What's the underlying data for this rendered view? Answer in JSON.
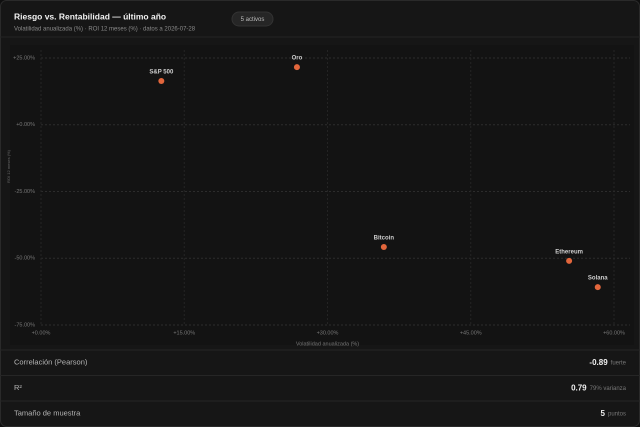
{
  "header": {
    "title": "Riesgo vs. Rentabilidad — último año",
    "subtitle": "Volatilidad anualizada (%) · ROI 12 meses (%) · datos a 2026-07-28",
    "badge": "5 activos"
  },
  "chart_data": {
    "type": "scatter",
    "x_label": "Volatilidad anualizada (%)",
    "y_label": "ROI 12 meses (%)",
    "series": [
      {
        "name": null,
        "color": "#e2663c",
        "labels": [
          "S&P 500",
          "Oro",
          "Bitcoin",
          "Ethereum",
          "Solana"
        ],
        "x": [
          12.6,
          26.8,
          35.9,
          55.3,
          58.3
        ],
        "values": [
          16.4,
          21.6,
          -45.8,
          -51,
          -60.8
        ]
      }
    ],
    "xlim": [
      0,
      60
    ],
    "ylim": [
      -75,
      25
    ],
    "xticks": [
      {
        "value": 0,
        "label": "+0.00%"
      },
      {
        "value": 15,
        "label": "+15.00%"
      },
      {
        "value": 30,
        "label": "+30.00%"
      },
      {
        "value": 45,
        "label": "+45.00%"
      },
      {
        "value": 60,
        "label": "+60.00%"
      }
    ],
    "yticks": [
      {
        "value": 25,
        "label": "+25.00%"
      },
      {
        "value": 0,
        "label": "+0.00%"
      },
      {
        "value": -25,
        "label": "-25.00%"
      },
      {
        "value": -50,
        "label": "-50.00%"
      },
      {
        "value": -75,
        "label": "-75.00%"
      }
    ],
    "grid": true
  },
  "stats": [
    {
      "label": "Correlación (Pearson)",
      "value": -0.89,
      "note": "fuerte"
    },
    {
      "label": "R²",
      "value": 0.79,
      "note": "79% varianza"
    },
    {
      "label": "Tamaño de muestra",
      "value": 5,
      "note": "puntos"
    }
  ]
}
